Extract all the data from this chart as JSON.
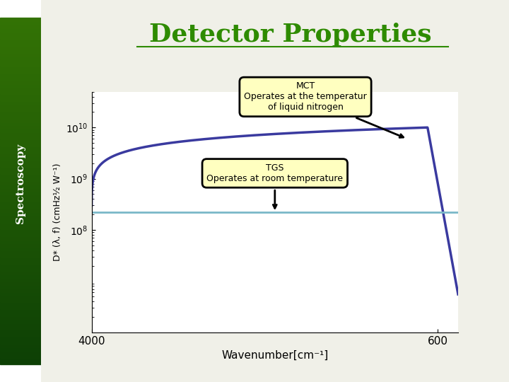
{
  "title": "Detector Properties",
  "title_color": "#2e8b00",
  "title_fontsize": 26,
  "bg_color": "#f0f0e8",
  "plot_bg": "#ffffff",
  "xlabel": "Wavenumber[cm⁻¹]",
  "ylabel": "D* (λ, f) (cmHz½ W⁻¹)",
  "mct_color": "#3a3a9f",
  "tgs_color": "#7ab8c8",
  "annotation_mct": "MCT\nOperates at the temperatur\nof liquid nitrogen",
  "annotation_tgs": "TGS\nOperates at room temperature",
  "sidebar_text": "Spectroscopy"
}
